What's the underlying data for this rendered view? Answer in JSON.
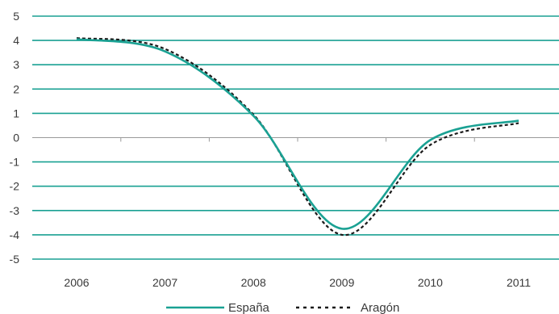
{
  "chart_data": {
    "type": "line",
    "title": "",
    "xlabel": "",
    "ylabel": "",
    "x": [
      2006,
      2007,
      2008,
      2009,
      2010,
      2011
    ],
    "x_tick_labels": [
      "2006",
      "2007",
      "2008",
      "2009",
      "2010",
      "2011"
    ],
    "ylim": [
      -5,
      5
    ],
    "y_ticks": [
      5,
      4,
      3,
      2,
      1,
      0,
      -1,
      -2,
      -3,
      -4,
      -5
    ],
    "y_tick_labels": [
      "5",
      "4",
      "3",
      "2",
      "1",
      "0",
      "-1",
      "-2",
      "-3",
      "-4",
      "-5"
    ],
    "grid": "horizontal",
    "legend": "bottom",
    "series": [
      {
        "name": "España",
        "color": "#1aa193",
        "style": "solid",
        "values": [
          4.05,
          3.55,
          0.9,
          -3.75,
          -0.1,
          0.7
        ]
      },
      {
        "name": "Aragón",
        "color": "#1a1a1a",
        "style": "dashed",
        "values": [
          4.1,
          3.65,
          0.95,
          -4.0,
          -0.3,
          0.6
        ]
      }
    ]
  }
}
